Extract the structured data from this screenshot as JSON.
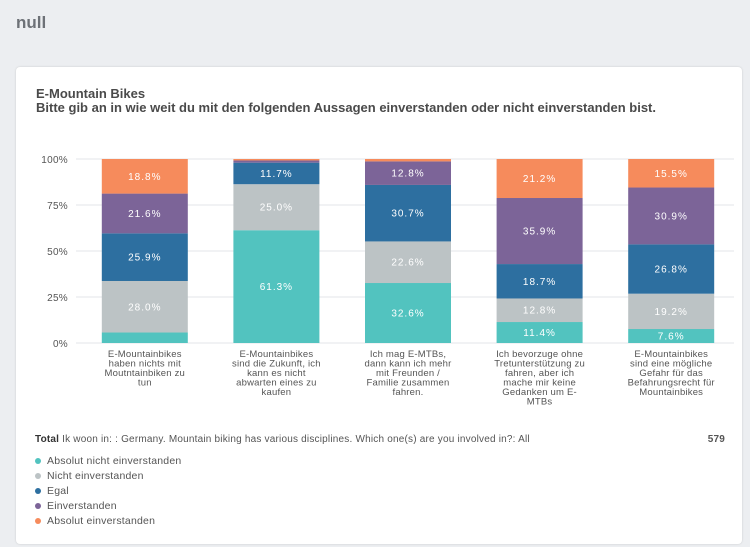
{
  "page": {
    "title": "null"
  },
  "chart_data": {
    "type": "bar",
    "stacked": true,
    "title": "E-Mountain Bikes",
    "subtitle": "Bitte gib an in wie weit du mit den folgenden Aussagen einverstanden oder nicht einverstanden bist.",
    "ylim": [
      0,
      100
    ],
    "yticks": [
      "0%",
      "25%",
      "50%",
      "75%",
      "100%"
    ],
    "grid": true,
    "categories": [
      [
        "E-Mountainbikes",
        "haben nichts mit",
        "Moutntainbiken zu",
        "tun"
      ],
      [
        "E-Mountainbikes",
        "sind die Zukunft, ich",
        "kann es nicht",
        "abwarten eines zu",
        "kaufen"
      ],
      [
        "Ich mag E-MTBs,",
        "dann kann ich mehr",
        "mit Freunden /",
        "Familie zusammen",
        "fahren."
      ],
      [
        "Ich bevorzuge ohne",
        "Tretunterstützung zu",
        "fahren, aber ich",
        "mache mir keine",
        "Gedanken um E-",
        "MTBs"
      ],
      [
        "E-Mountainbikes",
        "sind eine mögliche",
        "Gefahr für das",
        "Befahrungsrecht für",
        "Mountainbikes"
      ]
    ],
    "series": [
      {
        "name": "Absolut nicht einverstanden",
        "color": "#52c3bf",
        "values": [
          5.7,
          61.3,
          32.6,
          11.4,
          7.6
        ],
        "labels": [
          "",
          "61.3%",
          "32.6%",
          "11.4%",
          "7.6%"
        ]
      },
      {
        "name": "Nicht einverstanden",
        "color": "#bcc3c5",
        "values": [
          28.0,
          25.0,
          22.6,
          12.8,
          19.2
        ],
        "labels": [
          "28.0%",
          "25.0%",
          "22.6%",
          "12.8%",
          "19.2%"
        ]
      },
      {
        "name": "Egal",
        "color": "#2d6fa0",
        "values": [
          25.9,
          11.7,
          30.7,
          18.7,
          26.8
        ],
        "labels": [
          "25.9%",
          "11.7%",
          "30.7%",
          "18.7%",
          "26.8%"
        ]
      },
      {
        "name": "Einverstanden",
        "color": "#7c6498",
        "values": [
          21.6,
          1.2,
          12.8,
          35.9,
          30.9
        ],
        "labels": [
          "21.6%",
          "",
          "12.8%",
          "35.9%",
          "30.9%"
        ]
      },
      {
        "name": "Absolut einverstanden",
        "color": "#f68b5c",
        "values": [
          18.8,
          0.8,
          1.3,
          21.2,
          15.5
        ],
        "labels": [
          "18.8%",
          "",
          "",
          "21.2%",
          "15.5%"
        ]
      }
    ],
    "legend_position": "bottom-left"
  },
  "footer": {
    "total_label": "Total",
    "filter_text": "Ik woon in: : Germany. Mountain biking has various disciplines. Which one(s) are you involved in?: All",
    "count": "579"
  }
}
